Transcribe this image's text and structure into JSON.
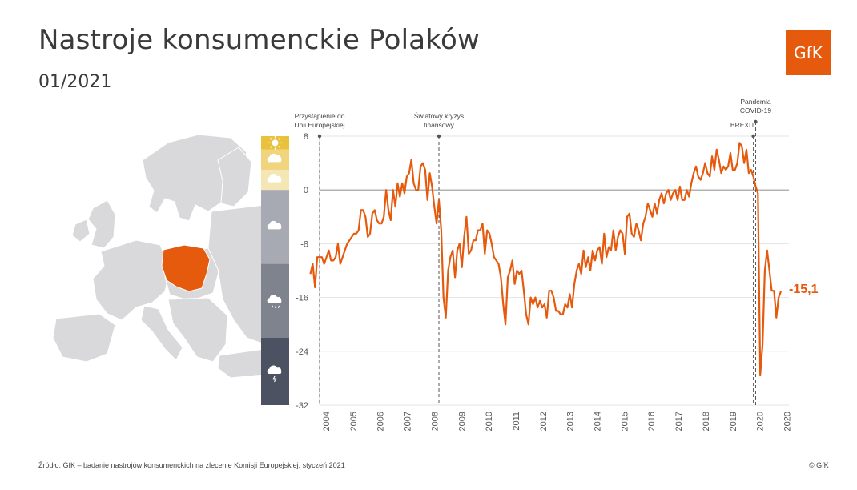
{
  "title": "Nastroje konsumenckie Polaków",
  "subtitle": "01/2021",
  "logo_text": "GfK",
  "source": "Źródło: GfK – badanie nastrojów konsumenckich na zlecenie Komisji Europejskiej, styczeń 2021",
  "copyright": "© GfK",
  "colors": {
    "accent": "#e55a0d",
    "map_land": "#d9d9db",
    "map_highlight": "#e55a0d",
    "band_sunny": "#e9c13c",
    "band_partly": "#f0d57e",
    "band_light": "#f5e6b5",
    "band_cloudy": "#a7aab2",
    "band_rain": "#7f838e",
    "band_storm": "#4d5263"
  },
  "mood_bands": [
    {
      "from": 6,
      "to": 8,
      "icon": "sun-icon"
    },
    {
      "from": 3,
      "to": 6,
      "icon": "partly-cloudy-icon"
    },
    {
      "from": 0,
      "to": 3,
      "icon": "cloud-light-icon"
    },
    {
      "from": -11,
      "to": 0,
      "icon": "cloud-icon"
    },
    {
      "from": -22,
      "to": -11,
      "icon": "cloud-rain-icon"
    },
    {
      "from": -32,
      "to": -22,
      "icon": "cloud-storm-icon"
    }
  ],
  "chart_data": {
    "type": "line",
    "title": "Nastroje konsumenckie Polaków",
    "ylim": [
      -32,
      8
    ],
    "y_ticks": [
      8,
      0,
      -8,
      -16,
      -24,
      -32
    ],
    "x_ticks": [
      "2004",
      "2005",
      "2006",
      "2007",
      "2008",
      "2009",
      "2010",
      "2011",
      "2012",
      "2013",
      "2014",
      "2015",
      "2016",
      "2017",
      "2018",
      "2019",
      "2020",
      "2020"
    ],
    "grid": true,
    "last_value_label": "-15,1",
    "events": [
      {
        "label_lines": [
          "Przystąpienie do",
          "Unii Europejskiej"
        ],
        "date": "2004-05"
      },
      {
        "label_lines": [
          "Światowy kryzys",
          "finansowy"
        ],
        "date": "2008-09"
      },
      {
        "label_lines": [
          "BREXIT"
        ],
        "date": "2020-02"
      },
      {
        "label_lines": [
          "Pandemia",
          "COVID-19"
        ],
        "date": "2020-03"
      }
    ],
    "series": [
      {
        "values": [
          [
            "2004-01",
            -12.5
          ],
          [
            "2004-02",
            -11
          ],
          [
            "2004-03",
            -14.5
          ],
          [
            "2004-04",
            -10
          ],
          [
            "2004-05",
            -10
          ],
          [
            "2004-06",
            -10
          ],
          [
            "2004-07",
            -11
          ],
          [
            "2004-08",
            -10
          ],
          [
            "2004-09",
            -9
          ],
          [
            "2004-10",
            -10.5
          ],
          [
            "2004-11",
            -10.5
          ],
          [
            "2004-12",
            -10
          ],
          [
            "2005-01",
            -8
          ],
          [
            "2005-02",
            -11
          ],
          [
            "2005-03",
            -10
          ],
          [
            "2005-04",
            -9
          ],
          [
            "2005-05",
            -8
          ],
          [
            "2005-06",
            -7.5
          ],
          [
            "2005-07",
            -7
          ],
          [
            "2005-08",
            -6.5
          ],
          [
            "2005-09",
            -6.5
          ],
          [
            "2005-10",
            -6
          ],
          [
            "2005-11",
            -3
          ],
          [
            "2005-12",
            -3
          ],
          [
            "2006-01",
            -4
          ],
          [
            "2006-02",
            -7
          ],
          [
            "2006-03",
            -6.5
          ],
          [
            "2006-04",
            -3.5
          ],
          [
            "2006-05",
            -3
          ],
          [
            "2006-06",
            -4.5
          ],
          [
            "2006-07",
            -5
          ],
          [
            "2006-08",
            -5
          ],
          [
            "2006-09",
            -4
          ],
          [
            "2006-10",
            0
          ],
          [
            "2006-11",
            -3
          ],
          [
            "2006-12",
            -4.5
          ],
          [
            "2007-01",
            0
          ],
          [
            "2007-02",
            -2.5
          ],
          [
            "2007-03",
            1
          ],
          [
            "2007-04",
            -1
          ],
          [
            "2007-05",
            1
          ],
          [
            "2007-06",
            -0.5
          ],
          [
            "2007-07",
            2
          ],
          [
            "2007-08",
            2.5
          ],
          [
            "2007-09",
            4.5
          ],
          [
            "2007-10",
            1
          ],
          [
            "2007-11",
            0
          ],
          [
            "2007-12",
            0
          ],
          [
            "2008-01",
            3.5
          ],
          [
            "2008-02",
            4
          ],
          [
            "2008-03",
            3
          ],
          [
            "2008-04",
            -1.5
          ],
          [
            "2008-05",
            2.5
          ],
          [
            "2008-06",
            0.5
          ],
          [
            "2008-07",
            -2.5
          ],
          [
            "2008-08",
            -5
          ],
          [
            "2008-09",
            -1.5
          ],
          [
            "2008-10",
            -6
          ],
          [
            "2008-11",
            -16
          ],
          [
            "2008-12",
            -19
          ],
          [
            "2009-01",
            -12
          ],
          [
            "2009-02",
            -10
          ],
          [
            "2009-03",
            -9
          ],
          [
            "2009-04",
            -13
          ],
          [
            "2009-05",
            -9
          ],
          [
            "2009-06",
            -8
          ],
          [
            "2009-07",
            -11.5
          ],
          [
            "2009-08",
            -7
          ],
          [
            "2009-09",
            -4
          ],
          [
            "2009-10",
            -9.5
          ],
          [
            "2009-11",
            -9
          ],
          [
            "2009-12",
            -7.5
          ],
          [
            "2010-01",
            -7.5
          ],
          [
            "2010-02",
            -6
          ],
          [
            "2010-03",
            -6
          ],
          [
            "2010-04",
            -5
          ],
          [
            "2010-05",
            -9.5
          ],
          [
            "2010-06",
            -6
          ],
          [
            "2010-07",
            -6.5
          ],
          [
            "2010-08",
            -8
          ],
          [
            "2010-09",
            -10
          ],
          [
            "2010-10",
            -10.5
          ],
          [
            "2010-11",
            -11
          ],
          [
            "2010-12",
            -13
          ],
          [
            "2011-01",
            -17
          ],
          [
            "2011-02",
            -20
          ],
          [
            "2011-03",
            -13
          ],
          [
            "2011-04",
            -12
          ],
          [
            "2011-05",
            -10.5
          ],
          [
            "2011-06",
            -14
          ],
          [
            "2011-07",
            -12
          ],
          [
            "2011-08",
            -12.5
          ],
          [
            "2011-09",
            -12
          ],
          [
            "2011-10",
            -15
          ],
          [
            "2011-11",
            -18.5
          ],
          [
            "2011-12",
            -20
          ],
          [
            "2012-01",
            -16
          ],
          [
            "2012-02",
            -17
          ],
          [
            "2012-03",
            -16
          ],
          [
            "2012-04",
            -17.5
          ],
          [
            "2012-05",
            -16.5
          ],
          [
            "2012-06",
            -17.5
          ],
          [
            "2012-07",
            -17
          ],
          [
            "2012-08",
            -19
          ],
          [
            "2012-09",
            -15
          ],
          [
            "2012-10",
            -15
          ],
          [
            "2012-11",
            -16
          ],
          [
            "2012-12",
            -18
          ],
          [
            "2013-01",
            -18
          ],
          [
            "2013-02",
            -18.5
          ],
          [
            "2013-03",
            -18.5
          ],
          [
            "2013-04",
            -17
          ],
          [
            "2013-05",
            -17.5
          ],
          [
            "2013-06",
            -15.5
          ],
          [
            "2013-07",
            -17.5
          ],
          [
            "2013-08",
            -14
          ],
          [
            "2013-09",
            -12
          ],
          [
            "2013-10",
            -11
          ],
          [
            "2013-11",
            -12.5
          ],
          [
            "2013-12",
            -9
          ],
          [
            "2014-01",
            -11.5
          ],
          [
            "2014-02",
            -10
          ],
          [
            "2014-03",
            -12
          ],
          [
            "2014-04",
            -9
          ],
          [
            "2014-05",
            -10.5
          ],
          [
            "2014-06",
            -9
          ],
          [
            "2014-07",
            -8.5
          ],
          [
            "2014-08",
            -11
          ],
          [
            "2014-09",
            -6.5
          ],
          [
            "2014-10",
            -10
          ],
          [
            "2014-11",
            -8.5
          ],
          [
            "2014-12",
            -9
          ],
          [
            "2015-01",
            -6
          ],
          [
            "2015-02",
            -9
          ],
          [
            "2015-03",
            -7
          ],
          [
            "2015-04",
            -6
          ],
          [
            "2015-05",
            -6.5
          ],
          [
            "2015-06",
            -9.5
          ],
          [
            "2015-07",
            -4
          ],
          [
            "2015-08",
            -3.5
          ],
          [
            "2015-09",
            -6.5
          ],
          [
            "2015-10",
            -7
          ],
          [
            "2015-11",
            -5
          ],
          [
            "2015-12",
            -6
          ],
          [
            "2016-01",
            -7.5
          ],
          [
            "2016-02",
            -5
          ],
          [
            "2016-03",
            -4
          ],
          [
            "2016-04",
            -2
          ],
          [
            "2016-05",
            -3
          ],
          [
            "2016-06",
            -4
          ],
          [
            "2016-07",
            -2
          ],
          [
            "2016-08",
            -3.5
          ],
          [
            "2016-09",
            -1.5
          ],
          [
            "2016-10",
            -0.5
          ],
          [
            "2016-11",
            -2
          ],
          [
            "2016-12",
            -0.5
          ],
          [
            "2017-01",
            0
          ],
          [
            "2017-02",
            -1.5
          ],
          [
            "2017-03",
            -0.5
          ],
          [
            "2017-04",
            0
          ],
          [
            "2017-05",
            -1.5
          ],
          [
            "2017-06",
            0.5
          ],
          [
            "2017-07",
            -1.5
          ],
          [
            "2017-08",
            -1.5
          ],
          [
            "2017-09",
            0
          ],
          [
            "2017-10",
            -1
          ],
          [
            "2017-11",
            1
          ],
          [
            "2017-12",
            2.5
          ],
          [
            "2018-01",
            3.5
          ],
          [
            "2018-02",
            2
          ],
          [
            "2018-03",
            1.5
          ],
          [
            "2018-04",
            2.5
          ],
          [
            "2018-05",
            4
          ],
          [
            "2018-06",
            2.5
          ],
          [
            "2018-07",
            2
          ],
          [
            "2018-08",
            5
          ],
          [
            "2018-09",
            3
          ],
          [
            "2018-10",
            6
          ],
          [
            "2018-11",
            4.5
          ],
          [
            "2018-12",
            2.5
          ],
          [
            "2019-01",
            3.5
          ],
          [
            "2019-02",
            3
          ],
          [
            "2019-03",
            3.5
          ],
          [
            "2019-04",
            5.5
          ],
          [
            "2019-05",
            3
          ],
          [
            "2019-06",
            3
          ],
          [
            "2019-07",
            4
          ],
          [
            "2019-08",
            7
          ],
          [
            "2019-09",
            6.5
          ],
          [
            "2019-10",
            4
          ],
          [
            "2019-11",
            6
          ],
          [
            "2019-12",
            2.5
          ],
          [
            "2020-01",
            3
          ],
          [
            "2020-02",
            2
          ],
          [
            "2020-03",
            0.5
          ],
          [
            "2020-04",
            -0.5
          ],
          [
            "2020-05",
            -27.5
          ],
          [
            "2020-06",
            -23
          ],
          [
            "2020-07",
            -12
          ],
          [
            "2020-08",
            -9
          ],
          [
            "2020-09",
            -12
          ],
          [
            "2020-10",
            -15
          ],
          [
            "2020-11",
            -15
          ],
          [
            "2020-12",
            -19
          ],
          [
            "2021-01",
            -16
          ],
          [
            "2021-02",
            -15.1
          ]
        ]
      }
    ]
  }
}
